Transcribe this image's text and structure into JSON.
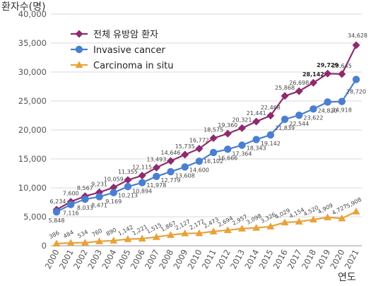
{
  "chart_data": {
    "type": "line",
    "ylabel": "환자수(명)",
    "xlabel": "연도",
    "ylim": [
      0,
      40000
    ],
    "yticks": [
      0,
      5000,
      10000,
      15000,
      20000,
      25000,
      30000,
      35000,
      40000
    ],
    "y_tick_labels": [
      "0",
      "5,000",
      "10,000",
      "15,000",
      "20,000",
      "25,000",
      "30,000",
      "35,000",
      "40,000"
    ],
    "grid": true,
    "legend_position": "top-left",
    "categories": [
      "2000",
      "2001",
      "2002",
      "2003",
      "2004",
      "2005",
      "2006",
      "2007",
      "2008",
      "2009",
      "2010",
      "2011",
      "2012",
      "2013",
      "2014",
      "2015",
      "2016",
      "2017",
      "2018",
      "2019",
      "2020",
      "2021"
    ],
    "series": [
      {
        "name": "전체 유방암 환자",
        "color": "#8e2b6e",
        "marker": "diamond",
        "values": [
          6234,
          7600,
          8567,
          9231,
          10059,
          11355,
          12115,
          13493,
          14646,
          15735,
          16772,
          18575,
          19360,
          20321,
          21441,
          22468,
          25868,
          26698,
          28142,
          29729,
          29645,
          34628
        ],
        "labels": [
          "6,234",
          "7,600",
          "8,567",
          "9,231",
          "10,059",
          "11,355",
          "12,115",
          "13,493",
          "14,646",
          "15,735",
          "16,772",
          "18,575",
          "19,360",
          "20,321",
          "21,441",
          "22,468",
          "25,868",
          "26,698",
          "28,142",
          "29,729",
          "29,645",
          "34,628"
        ]
      },
      {
        "name": "Invasive cancer",
        "color": "#4a7fd0",
        "marker": "circle",
        "values": [
          5848,
          7116,
          8033,
          8471,
          9169,
          10213,
          10894,
          11978,
          12779,
          13608,
          14600,
          16102,
          16666,
          17364,
          18343,
          19142,
          21839,
          22544,
          23622,
          24820,
          24918,
          28720
        ],
        "labels": [
          "5,848",
          "7,116",
          "8,033",
          "8,471",
          "9,169",
          "10,213",
          "10,894",
          "11,978",
          "12,779",
          "13,608",
          "14,600",
          "16,102",
          "16,666",
          "17,364",
          "18,343",
          "19,142",
          "21,839",
          "22,544",
          "23,622",
          "24,820",
          "24,918",
          "28,720"
        ]
      },
      {
        "name": "Carcinoma in situ",
        "color": "#e8a23a",
        "marker": "triangle",
        "values": [
          386,
          484,
          534,
          760,
          890,
          1142,
          1221,
          1515,
          1867,
          2127,
          2172,
          2473,
          2694,
          2957,
          3098,
          3326,
          4029,
          4154,
          4520,
          4909,
          4727,
          5908
        ],
        "labels": [
          "386",
          "484",
          "534",
          "760",
          "890",
          "1,142",
          "1,221",
          "1,515",
          "1,867",
          "2,127",
          "2,172",
          "2,473",
          "2,694",
          "2,957",
          "3,098",
          "3,326",
          "4,029",
          "4,154",
          "4,520",
          "4,909",
          "4,727",
          "5,908"
        ]
      }
    ]
  }
}
